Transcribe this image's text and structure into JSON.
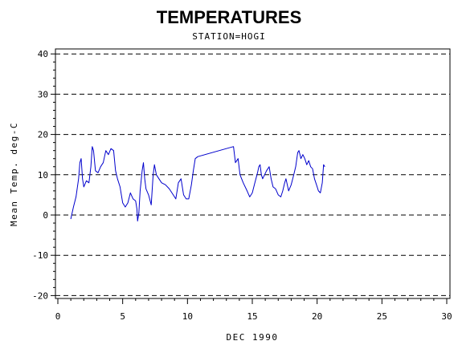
{
  "chart_data": {
    "type": "line",
    "title": "TEMPERATURES",
    "subtitle": "STATION=HOGI",
    "xlabel": "DEC 1990",
    "ylabel": "Mean Temp. deg-C",
    "xlim": [
      0,
      30
    ],
    "ylim": [
      -21,
      41
    ],
    "x_ticks": [
      0,
      5,
      10,
      15,
      20,
      25,
      30
    ],
    "y_ticks": [
      -20,
      -10,
      0,
      10,
      20,
      30,
      40
    ],
    "y_grid": "dashed",
    "line_color": "#0000cc",
    "series": [
      {
        "values": [
          [
            1.0,
            -1.0
          ],
          [
            1.2,
            2.0
          ],
          [
            1.4,
            4.5
          ],
          [
            1.6,
            9.0
          ],
          [
            1.7,
            13.0
          ],
          [
            1.8,
            14.0
          ],
          [
            1.9,
            9.0
          ],
          [
            2.0,
            7.0
          ],
          [
            2.2,
            8.5
          ],
          [
            2.4,
            8.0
          ],
          [
            2.55,
            12.0
          ],
          [
            2.65,
            17.0
          ],
          [
            2.75,
            16.0
          ],
          [
            2.9,
            11.0
          ],
          [
            3.1,
            10.5
          ],
          [
            3.3,
            12.0
          ],
          [
            3.5,
            13.0
          ],
          [
            3.7,
            16.0
          ],
          [
            3.9,
            15.0
          ],
          [
            4.1,
            16.5
          ],
          [
            4.3,
            16.0
          ],
          [
            4.45,
            11.0
          ],
          [
            4.6,
            9.0
          ],
          [
            4.8,
            7.0
          ],
          [
            5.0,
            3.0
          ],
          [
            5.2,
            2.0
          ],
          [
            5.4,
            3.0
          ],
          [
            5.6,
            5.5
          ],
          [
            5.8,
            4.0
          ],
          [
            6.0,
            3.5
          ],
          [
            6.1,
            1.5
          ],
          [
            6.15,
            -1.5
          ],
          [
            6.25,
            0.5
          ],
          [
            6.35,
            6.0
          ],
          [
            6.5,
            11.0
          ],
          [
            6.6,
            13.0
          ],
          [
            6.7,
            9.0
          ],
          [
            6.8,
            6.5
          ],
          [
            7.0,
            5.0
          ],
          [
            7.2,
            2.5
          ],
          [
            7.35,
            10.0
          ],
          [
            7.45,
            12.5
          ],
          [
            7.6,
            10.0
          ],
          [
            7.8,
            9.0
          ],
          [
            8.0,
            8.0
          ],
          [
            8.3,
            7.5
          ],
          [
            8.6,
            6.5
          ],
          [
            8.9,
            5.0
          ],
          [
            9.1,
            4.0
          ],
          [
            9.3,
            8.0
          ],
          [
            9.5,
            9.0
          ],
          [
            9.7,
            5.0
          ],
          [
            9.9,
            4.0
          ],
          [
            10.1,
            4.0
          ],
          [
            10.3,
            7.5
          ],
          [
            10.45,
            11.0
          ],
          [
            10.6,
            14.0
          ],
          [
            10.8,
            14.5
          ],
          [
            13.55,
            17.0
          ],
          [
            13.7,
            13.0
          ],
          [
            13.9,
            14.0
          ],
          [
            14.05,
            10.0
          ],
          [
            14.3,
            8.0
          ],
          [
            14.6,
            6.0
          ],
          [
            14.8,
            4.5
          ],
          [
            15.0,
            5.5
          ],
          [
            15.2,
            8.0
          ],
          [
            15.4,
            10.5
          ],
          [
            15.5,
            12.0
          ],
          [
            15.6,
            12.5
          ],
          [
            15.7,
            10.0
          ],
          [
            15.8,
            9.0
          ],
          [
            15.95,
            10.0
          ],
          [
            16.1,
            11.0
          ],
          [
            16.3,
            12.0
          ],
          [
            16.45,
            9.0
          ],
          [
            16.6,
            7.0
          ],
          [
            16.8,
            6.5
          ],
          [
            17.0,
            5.0
          ],
          [
            17.2,
            4.5
          ],
          [
            17.35,
            6.0
          ],
          [
            17.5,
            8.0
          ],
          [
            17.6,
            9.0
          ],
          [
            17.8,
            6.0
          ],
          [
            18.0,
            7.5
          ],
          [
            18.2,
            10.0
          ],
          [
            18.35,
            12.0
          ],
          [
            18.5,
            15.5
          ],
          [
            18.6,
            16.0
          ],
          [
            18.75,
            14.0
          ],
          [
            18.9,
            15.0
          ],
          [
            19.05,
            14.0
          ],
          [
            19.2,
            12.5
          ],
          [
            19.35,
            13.5
          ],
          [
            19.5,
            12.0
          ],
          [
            19.65,
            11.5
          ],
          [
            19.8,
            9.0
          ],
          [
            19.95,
            7.5
          ],
          [
            20.1,
            6.0
          ],
          [
            20.25,
            5.5
          ],
          [
            20.4,
            8.0
          ],
          [
            20.5,
            12.5
          ],
          [
            20.6,
            12.0
          ]
        ]
      }
    ]
  }
}
